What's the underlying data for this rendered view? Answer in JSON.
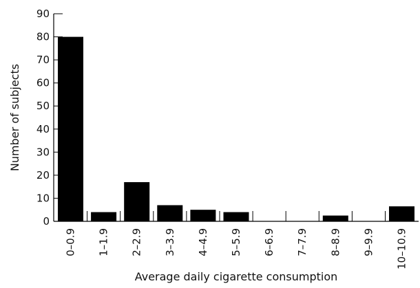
{
  "chart_data": {
    "type": "bar",
    "title": "",
    "xlabel": "Average daily cigarette consumption",
    "ylabel": "Number of subjects",
    "ylim": [
      0,
      90
    ],
    "yticks": [
      0,
      10,
      20,
      30,
      40,
      50,
      60,
      70,
      80,
      90
    ],
    "grid": false,
    "legend": "none",
    "categories": [
      "0–0.9",
      "1–1.9",
      "2–2.9",
      "3–3.9",
      "4–4.9",
      "5–5.9",
      "6–6.9",
      "7–7.9",
      "8–8.9",
      "9–9.9",
      "10–10.9"
    ],
    "values": [
      80,
      4,
      17,
      7,
      5,
      4,
      0,
      0,
      2.5,
      0,
      6.5
    ],
    "colors": {
      "bar": "#000000",
      "axis": "#000000",
      "background": "#ffffff"
    }
  }
}
